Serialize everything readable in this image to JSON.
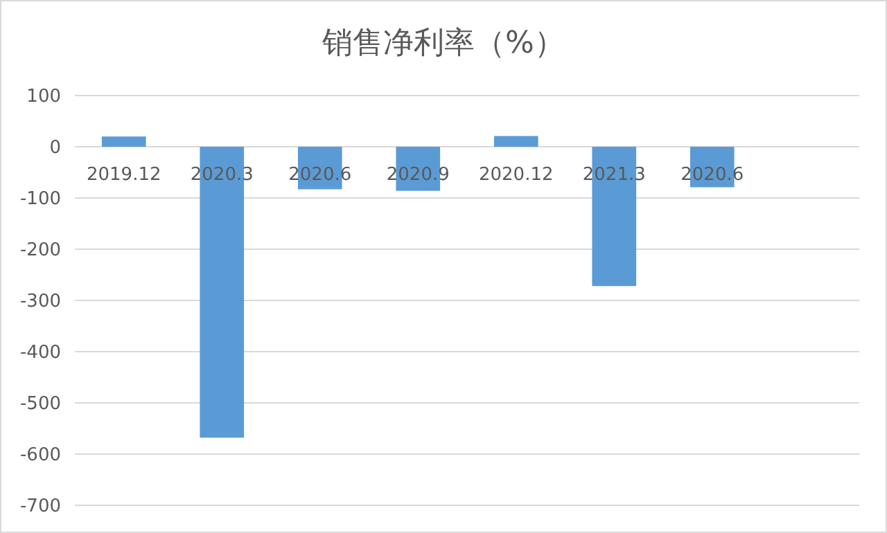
{
  "chart_data": {
    "type": "bar",
    "title": "销售净利率（%）",
    "categories": [
      "2019.12",
      "2020.3",
      "2020.6",
      "2020.9",
      "2020.12",
      "2021.3",
      "2020.6",
      null
    ],
    "values": [
      20,
      -568,
      -83,
      -86,
      21,
      -272,
      -79,
      null
    ],
    "color": "#5b9bd5",
    "ylim": [
      -700,
      100
    ],
    "yticks": [
      -700,
      -600,
      -500,
      -400,
      -300,
      -200,
      -100,
      0,
      100
    ],
    "grid": "y"
  }
}
